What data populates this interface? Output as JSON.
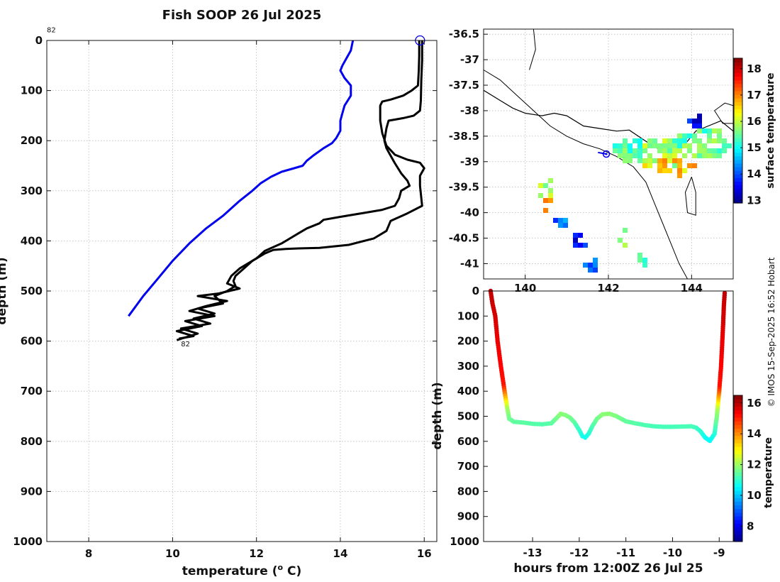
{
  "figure_title": "Fish SOOP 26 Jul 2025",
  "credit": "© IMOS 15-Sep-2025 16:52 Hobart",
  "colors": {
    "profile_current": "#0000ee",
    "profile_history": "#000000",
    "coast": "#000000"
  },
  "chart_data": [
    {
      "id": "profile",
      "type": "line",
      "xlabel": "temperature (",
      "xlabel_sup": "o",
      "xlabel_tail": " C)",
      "ylabel": "depth (m)",
      "xlim": [
        7,
        16.3
      ],
      "ylim": [
        0,
        1000
      ],
      "y_reversed": true,
      "xticks": [
        8,
        10,
        12,
        14,
        16
      ],
      "yticks": [
        0,
        100,
        200,
        300,
        400,
        500,
        600,
        700,
        800,
        900,
        1000
      ],
      "grid": true,
      "marker": {
        "temp": 15.9,
        "depth": 0
      },
      "annotations": [
        {
          "text": "82",
          "temp": 7,
          "depth": -22
        },
        {
          "text": "82",
          "temp": 10.2,
          "depth": 605
        }
      ],
      "series": [
        {
          "name": "current",
          "color": "#0000ee",
          "points": [
            [
              14.3,
              0
            ],
            [
              14.25,
              20
            ],
            [
              14.15,
              35
            ],
            [
              14.05,
              50
            ],
            [
              14.0,
              60
            ],
            [
              14.1,
              75
            ],
            [
              14.25,
              90
            ],
            [
              14.25,
              110
            ],
            [
              14.1,
              130
            ],
            [
              14.05,
              145
            ],
            [
              14.0,
              160
            ],
            [
              14.0,
              180
            ],
            [
              13.9,
              195
            ],
            [
              13.8,
              205
            ],
            [
              13.6,
              215
            ],
            [
              13.35,
              230
            ],
            [
              13.2,
              240
            ],
            [
              13.1,
              250
            ],
            [
              12.9,
              255
            ],
            [
              12.6,
              262
            ],
            [
              12.35,
              272
            ],
            [
              12.1,
              285
            ],
            [
              11.9,
              300
            ],
            [
              11.6,
              320
            ],
            [
              11.4,
              335
            ],
            [
              11.2,
              350
            ],
            [
              10.8,
              375
            ],
            [
              10.4,
              405
            ],
            [
              10.0,
              440
            ],
            [
              9.6,
              480
            ],
            [
              9.3,
              510
            ],
            [
              8.95,
              550
            ]
          ]
        },
        {
          "name": "history-1",
          "color": "#000000",
          "points": [
            [
              15.88,
              0
            ],
            [
              15.88,
              30
            ],
            [
              15.87,
              60
            ],
            [
              15.85,
              90
            ],
            [
              15.7,
              100
            ],
            [
              15.5,
              110
            ],
            [
              15.2,
              118
            ],
            [
              15.0,
              122
            ],
            [
              14.95,
              130
            ],
            [
              14.95,
              160
            ],
            [
              15.0,
              185
            ],
            [
              15.1,
              210
            ],
            [
              15.3,
              228
            ],
            [
              15.6,
              238
            ],
            [
              15.9,
              244
            ],
            [
              16.0,
              255
            ],
            [
              15.9,
              270
            ],
            [
              15.9,
              290
            ],
            [
              15.95,
              330
            ],
            [
              15.6,
              345
            ],
            [
              15.2,
              360
            ],
            [
              15.1,
              380
            ],
            [
              14.8,
              395
            ],
            [
              14.2,
              408
            ],
            [
              13.5,
              414
            ],
            [
              13.0,
              415
            ],
            [
              12.7,
              416
            ],
            [
              12.4,
              418
            ],
            [
              12.2,
              425
            ],
            [
              11.9,
              440
            ],
            [
              11.7,
              455
            ],
            [
              11.5,
              470
            ],
            [
              11.45,
              480
            ],
            [
              11.5,
              490
            ],
            [
              11.3,
              500
            ],
            [
              11.0,
              510
            ],
            [
              11.2,
              525
            ],
            [
              10.6,
              535
            ],
            [
              11.0,
              545
            ],
            [
              10.5,
              555
            ],
            [
              10.9,
              565
            ],
            [
              10.2,
              575
            ],
            [
              10.6,
              585
            ],
            [
              10.1,
              598
            ]
          ]
        },
        {
          "name": "history-2",
          "color": "#000000",
          "points": [
            [
              15.95,
              0
            ],
            [
              15.95,
              40
            ],
            [
              15.93,
              80
            ],
            [
              15.92,
              120
            ],
            [
              15.9,
              140
            ],
            [
              15.75,
              150
            ],
            [
              15.5,
              155
            ],
            [
              15.3,
              158
            ],
            [
              15.15,
              160
            ],
            [
              15.1,
              175
            ],
            [
              15.05,
              200
            ],
            [
              15.1,
              215
            ],
            [
              15.2,
              230
            ],
            [
              15.3,
              245
            ],
            [
              15.45,
              265
            ],
            [
              15.6,
              280
            ],
            [
              15.65,
              290
            ],
            [
              15.45,
              300
            ],
            [
              15.4,
              315
            ],
            [
              15.3,
              330
            ],
            [
              15.0,
              338
            ],
            [
              14.5,
              345
            ],
            [
              14.0,
              352
            ],
            [
              13.6,
              358
            ],
            [
              13.5,
              365
            ],
            [
              13.2,
              375
            ],
            [
              13.0,
              385
            ],
            [
              12.8,
              395
            ],
            [
              12.6,
              405
            ],
            [
              12.2,
              420
            ],
            [
              12.0,
              435
            ],
            [
              11.6,
              455
            ],
            [
              11.4,
              470
            ],
            [
              11.3,
              485
            ],
            [
              11.6,
              495
            ],
            [
              11.1,
              505
            ],
            [
              10.6,
              510
            ],
            [
              11.3,
              520
            ],
            [
              10.8,
              530
            ],
            [
              10.4,
              540
            ],
            [
              11.0,
              550
            ],
            [
              10.3,
              560
            ],
            [
              10.7,
              570
            ],
            [
              10.1,
              580
            ],
            [
              10.5,
              590
            ],
            [
              10.15,
              595
            ]
          ]
        }
      ]
    },
    {
      "id": "map",
      "type": "heatmap",
      "xlim": [
        139,
        145
      ],
      "ylim": [
        -41.3,
        -36.4
      ],
      "xticks": [
        140,
        142,
        144
      ],
      "xticklabels": [
        "140",
        "142",
        "144"
      ],
      "yticks": [
        -36.5,
        -37,
        -37.5,
        -38,
        -38.5,
        -39,
        -39.5,
        -40,
        -40.5,
        -41
      ],
      "yticklabels": [
        "-36.5",
        "-37",
        "-37.5",
        "-38",
        "-38.5",
        "-39",
        "-39.5",
        "-40",
        "-40.5",
        "-41"
      ],
      "grid": true,
      "colorbar": {
        "label": "surface temperature",
        "min": 12.9,
        "max": 18.4,
        "ticks": [
          13,
          14,
          15,
          16,
          17,
          18
        ],
        "ticklabels": [
          "13",
          "14",
          "15",
          "16",
          "17",
          "18"
        ]
      },
      "vessel_marker": {
        "lon": 141.95,
        "lat": -38.85
      },
      "track": [
        [
          141.75,
          -38.82
        ],
        [
          141.95,
          -38.85
        ]
      ],
      "sst_patches": [
        {
          "lon": 143.2,
          "lat": -38.85,
          "rx": 0.55,
          "ry": 0.28,
          "value": 15.8,
          "count": 60
        },
        {
          "lon": 142.5,
          "lat": -38.75,
          "rx": 0.4,
          "ry": 0.2,
          "value": 15.4,
          "count": 30
        },
        {
          "lon": 144.3,
          "lat": -38.65,
          "rx": 0.7,
          "ry": 0.3,
          "value": 15.5,
          "count": 70
        },
        {
          "lon": 143.6,
          "lat": -39.1,
          "rx": 0.45,
          "ry": 0.15,
          "value": 16.6,
          "count": 25
        },
        {
          "lon": 144.1,
          "lat": -38.2,
          "rx": 0.15,
          "ry": 0.1,
          "value": 13.6,
          "count": 10
        },
        {
          "lon": 140.5,
          "lat": -39.6,
          "rx": 0.2,
          "ry": 0.25,
          "value": 15.7,
          "count": 15
        },
        {
          "lon": 141.3,
          "lat": -40.6,
          "rx": 0.2,
          "ry": 0.12,
          "value": 13.7,
          "count": 12
        },
        {
          "lon": 140.9,
          "lat": -40.2,
          "rx": 0.2,
          "ry": 0.08,
          "value": 14.2,
          "count": 8
        },
        {
          "lon": 141.6,
          "lat": -41.05,
          "rx": 0.15,
          "ry": 0.1,
          "value": 14.3,
          "count": 8
        },
        {
          "lon": 142.4,
          "lat": -40.5,
          "rx": 0.08,
          "ry": 0.2,
          "value": 15.6,
          "count": 6
        },
        {
          "lon": 142.85,
          "lat": -40.95,
          "rx": 0.12,
          "ry": 0.15,
          "value": 15.3,
          "count": 6
        },
        {
          "lon": 140.55,
          "lat": -39.85,
          "rx": 0.1,
          "ry": 0.1,
          "value": 17.3,
          "count": 5
        },
        {
          "lon": 142.9,
          "lat": -39.05,
          "rx": 0.12,
          "ry": 0.06,
          "value": 17.0,
          "count": 4
        }
      ]
    },
    {
      "id": "section",
      "type": "scatter",
      "xlabel": "hours from 12:00Z 26 Jul 25",
      "ylabel": "depth (m)",
      "xlim": [
        -14.05,
        -8.7
      ],
      "ylim": [
        0,
        1000
      ],
      "y_reversed": true,
      "xticks": [
        -13,
        -12,
        -11,
        -10,
        -9
      ],
      "xticklabels": [
        "-13",
        "-12",
        "-11",
        "-10",
        "-9"
      ],
      "yticks": [
        0,
        100,
        200,
        300,
        400,
        500,
        600,
        700,
        800,
        900,
        1000
      ],
      "colorbar": {
        "label": "temperature",
        "min": 7,
        "max": 16.5,
        "ticks": [
          8,
          10,
          12,
          14,
          16
        ],
        "ticklabels": [
          "8",
          "10",
          "12",
          "14",
          "16"
        ]
      },
      "dive_path": [
        [
          -13.9,
          0
        ],
        [
          -13.86,
          50
        ],
        [
          -13.8,
          100
        ],
        [
          -13.75,
          200
        ],
        [
          -13.68,
          300
        ],
        [
          -13.6,
          400
        ],
        [
          -13.55,
          460
        ],
        [
          -13.5,
          510
        ],
        [
          -13.4,
          522
        ],
        [
          -13.2,
          525
        ],
        [
          -13.0,
          530
        ],
        [
          -12.8,
          532
        ],
        [
          -12.6,
          528
        ],
        [
          -12.5,
          510
        ],
        [
          -12.4,
          490
        ],
        [
          -12.3,
          495
        ],
        [
          -12.2,
          505
        ],
        [
          -12.1,
          525
        ],
        [
          -12.0,
          555
        ],
        [
          -11.93,
          580
        ],
        [
          -11.87,
          585
        ],
        [
          -11.8,
          570
        ],
        [
          -11.72,
          540
        ],
        [
          -11.62,
          510
        ],
        [
          -11.5,
          492
        ],
        [
          -11.35,
          490
        ],
        [
          -11.2,
          500
        ],
        [
          -11.0,
          520
        ],
        [
          -10.8,
          528
        ],
        [
          -10.6,
          535
        ],
        [
          -10.4,
          540
        ],
        [
          -10.2,
          542
        ],
        [
          -10.0,
          542
        ],
        [
          -9.8,
          541
        ],
        [
          -9.6,
          540
        ],
        [
          -9.5,
          545
        ],
        [
          -9.4,
          560
        ],
        [
          -9.3,
          585
        ],
        [
          -9.2,
          598
        ],
        [
          -9.1,
          570
        ],
        [
          -9.05,
          500
        ],
        [
          -9.0,
          400
        ],
        [
          -8.96,
          300
        ],
        [
          -8.92,
          150
        ],
        [
          -8.9,
          60
        ],
        [
          -8.88,
          0
        ]
      ]
    }
  ]
}
